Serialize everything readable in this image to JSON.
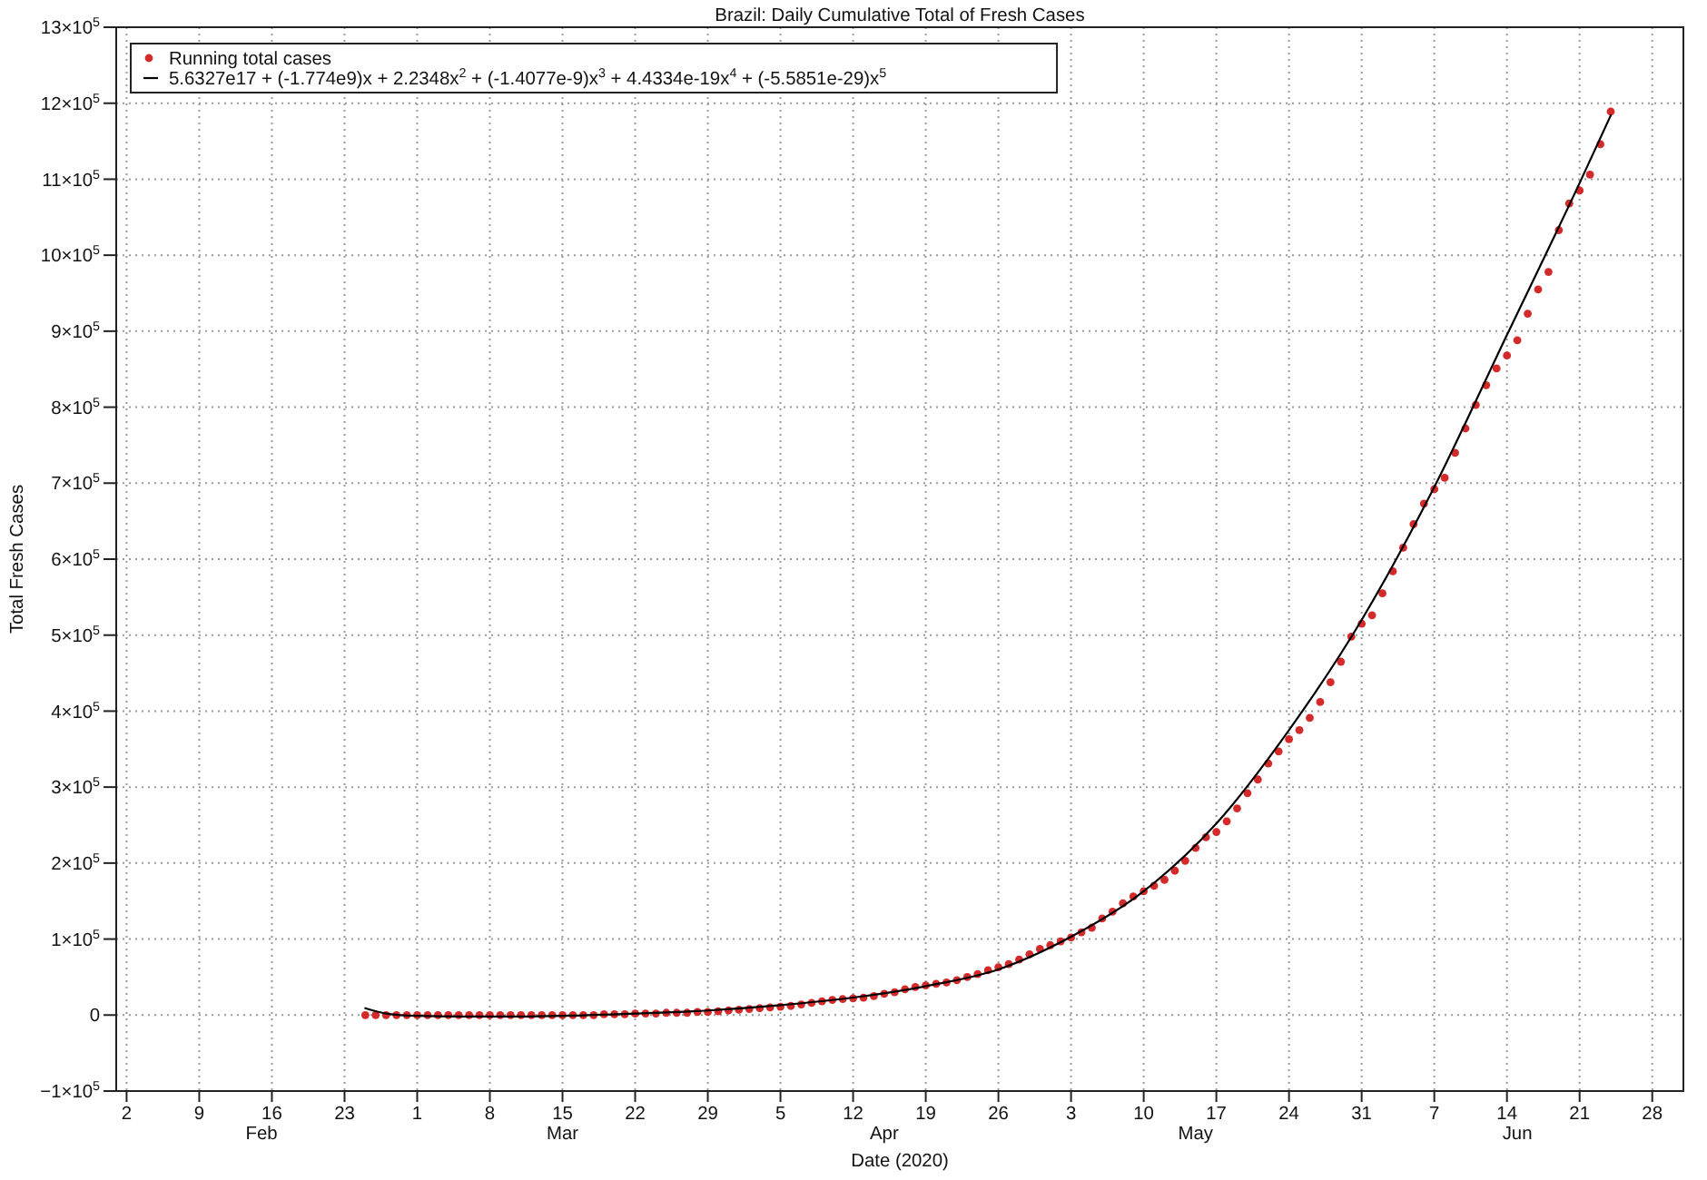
{
  "chart_data": {
    "type": "scatter",
    "title": "Brazil: Daily Cumulative Total of Fresh Cases",
    "xlabel": "Date (2020)",
    "ylabel": "Total Fresh Cases",
    "xlim": [
      "2020-02-01",
      "2020-07-01"
    ],
    "xticks": [
      {
        "value": "2020-02-02",
        "label": "2"
      },
      {
        "value": "2020-02-09",
        "label": "9"
      },
      {
        "value": "2020-02-16",
        "label": "16"
      },
      {
        "value": "2020-02-23",
        "label": "23"
      },
      {
        "value": "2020-03-01",
        "label": "1"
      },
      {
        "value": "2020-03-08",
        "label": "8"
      },
      {
        "value": "2020-03-15",
        "label": "15"
      },
      {
        "value": "2020-03-22",
        "label": "22"
      },
      {
        "value": "2020-03-29",
        "label": "29"
      },
      {
        "value": "2020-04-05",
        "label": "5"
      },
      {
        "value": "2020-04-12",
        "label": "12"
      },
      {
        "value": "2020-04-19",
        "label": "19"
      },
      {
        "value": "2020-04-26",
        "label": "26"
      },
      {
        "value": "2020-05-03",
        "label": "3"
      },
      {
        "value": "2020-05-10",
        "label": "10"
      },
      {
        "value": "2020-05-17",
        "label": "17"
      },
      {
        "value": "2020-05-24",
        "label": "24"
      },
      {
        "value": "2020-05-31",
        "label": "31"
      },
      {
        "value": "2020-06-07",
        "label": "7"
      },
      {
        "value": "2020-06-14",
        "label": "14"
      },
      {
        "value": "2020-06-21",
        "label": "21"
      },
      {
        "value": "2020-06-28",
        "label": "28"
      }
    ],
    "x2lim": [
      "2020-02-01",
      "2020-07-01"
    ],
    "x2ticks": [
      {
        "value": "2020-02-15",
        "label": "Feb"
      },
      {
        "value": "2020-03-15",
        "label": "Mar"
      },
      {
        "value": "2020-04-15",
        "label": "Apr"
      },
      {
        "value": "2020-05-15",
        "label": "May"
      },
      {
        "value": "2020-06-15",
        "label": "Jun"
      }
    ],
    "ylim": [
      -100000,
      1300000
    ],
    "yticks": [
      {
        "value": -100000,
        "label": "−1×10$^{5}$"
      },
      0,
      {
        "value": 100000,
        "label": "1×10$^{5}$"
      },
      {
        "value": 200000,
        "label": "2×10$^{5}$"
      },
      {
        "value": 300000,
        "label": "3×10$^{5}$"
      },
      {
        "value": 400000,
        "label": "4×10$^{5}$"
      },
      {
        "value": 500000,
        "label": "5×10$^{5}$"
      },
      {
        "value": 600000,
        "label": "6×10$^{5}$"
      },
      {
        "value": 700000,
        "label": "7×10$^{5}$"
      },
      {
        "value": 800000,
        "label": "8×10$^{5}$"
      },
      {
        "value": 900000,
        "label": "9×10$^{5}$"
      },
      {
        "value": 1000000,
        "label": "10×10$^{5}$"
      },
      {
        "value": 1100000,
        "label": "11×10$^{5}$"
      },
      {
        "value": 1200000,
        "label": "12×10$^{5}$"
      },
      {
        "value": 1300000,
        "label": "13×10$^{5}$"
      }
    ],
    "grid": true,
    "legend": "top left",
    "x": [
      "2020-02-25",
      "2020-02-26",
      "2020-02-27",
      "2020-02-28",
      "2020-02-29",
      "2020-03-01",
      "2020-03-02",
      "2020-03-03",
      "2020-03-04",
      "2020-03-05",
      "2020-03-06",
      "2020-03-07",
      "2020-03-08",
      "2020-03-09",
      "2020-03-10",
      "2020-03-11",
      "2020-03-12",
      "2020-03-13",
      "2020-03-14",
      "2020-03-15",
      "2020-03-16",
      "2020-03-17",
      "2020-03-18",
      "2020-03-19",
      "2020-03-20",
      "2020-03-21",
      "2020-03-22",
      "2020-03-23",
      "2020-03-24",
      "2020-03-25",
      "2020-03-26",
      "2020-03-27",
      "2020-03-28",
      "2020-03-29",
      "2020-03-30",
      "2020-03-31",
      "2020-04-01",
      "2020-04-02",
      "2020-04-03",
      "2020-04-04",
      "2020-04-05",
      "2020-04-06",
      "2020-04-07",
      "2020-04-08",
      "2020-04-09",
      "2020-04-10",
      "2020-04-11",
      "2020-04-12",
      "2020-04-13",
      "2020-04-14",
      "2020-04-15",
      "2020-04-16",
      "2020-04-17",
      "2020-04-18",
      "2020-04-19",
      "2020-04-20",
      "2020-04-21",
      "2020-04-22",
      "2020-04-23",
      "2020-04-24",
      "2020-04-25",
      "2020-04-26",
      "2020-04-27",
      "2020-04-28",
      "2020-04-29",
      "2020-04-30",
      "2020-05-01",
      "2020-05-02",
      "2020-05-03",
      "2020-05-04",
      "2020-05-05",
      "2020-05-06",
      "2020-05-07",
      "2020-05-08",
      "2020-05-09",
      "2020-05-10",
      "2020-05-11",
      "2020-05-12",
      "2020-05-13",
      "2020-05-14",
      "2020-05-15",
      "2020-05-16",
      "2020-05-17",
      "2020-05-18",
      "2020-05-19",
      "2020-05-20",
      "2020-05-21",
      "2020-05-22",
      "2020-05-23",
      "2020-05-24",
      "2020-05-25",
      "2020-05-26",
      "2020-05-27",
      "2020-05-28",
      "2020-05-29",
      "2020-05-30",
      "2020-05-31",
      "2020-06-01",
      "2020-06-02",
      "2020-06-03",
      "2020-06-04",
      "2020-06-05",
      "2020-06-06",
      "2020-06-07",
      "2020-06-08",
      "2020-06-09",
      "2020-06-10",
      "2020-06-11",
      "2020-06-12",
      "2020-06-13",
      "2020-06-14",
      "2020-06-15",
      "2020-06-16",
      "2020-06-17",
      "2020-06-18",
      "2020-06-19",
      "2020-06-20",
      "2020-06-21",
      "2020-06-22",
      "2020-06-23",
      "2020-06-24"
    ],
    "series": [
      {
        "name": "Running total cases",
        "color": "#d42a2a",
        "marker": "circle",
        "values": [
          0,
          0,
          0,
          0,
          0,
          0,
          0,
          0,
          0,
          0,
          0,
          0,
          0,
          0,
          0,
          0,
          0,
          0,
          0,
          0,
          0,
          0,
          0,
          1000,
          1000,
          1000,
          2000,
          2000,
          2000,
          3000,
          3000,
          3000,
          4000,
          4000,
          5000,
          6000,
          7000,
          8000,
          9000,
          10000,
          11000,
          12000,
          14000,
          16000,
          18000,
          20000,
          21000,
          22000,
          23000,
          25000,
          28000,
          30000,
          34000,
          37000,
          39000,
          41000,
          43000,
          46000,
          50000,
          54000,
          59000,
          63000,
          67000,
          73000,
          80000,
          87000,
          92000,
          97000,
          102000,
          109000,
          115000,
          127000,
          136000,
          147000,
          156000,
          163000,
          170000,
          178000,
          190000,
          203000,
          220000,
          234000,
          241000,
          255000,
          272000,
          292000,
          310000,
          331000,
          347000,
          363000,
          375000,
          391000,
          412000,
          438000,
          465000,
          498000,
          515000,
          526000,
          555000,
          584000,
          615000,
          646000,
          673000,
          692000,
          707000,
          740000,
          772000,
          803000,
          829000,
          851000,
          868000,
          888000,
          923000,
          955000,
          978000,
          1033000,
          1068000,
          1085000,
          1106000,
          1146000,
          1189000
        ]
      },
      {
        "name": "5.6327e17 + (-1.774e9)x + 2.2348x$^{2}$ + (-1.4077e-9)x$^{3}$ + 4.4334e-19x$^{4}$ + (-5.5851e-29)x$^{5}$",
        "type": "line",
        "color": "#000000",
        "x": [
          "2020-02-25",
          "2020-02-27",
          "2020-03-01",
          "2020-03-08",
          "2020-03-15",
          "2020-03-22",
          "2020-03-29",
          "2020-04-05",
          "2020-04-12",
          "2020-04-19",
          "2020-04-26",
          "2020-05-03",
          "2020-05-10",
          "2020-05-17",
          "2020-05-24",
          "2020-05-31",
          "2020-06-07",
          "2020-06-14",
          "2020-06-21",
          "2020-06-24"
        ],
        "values": [
          9000,
          2000,
          -1000,
          -2000,
          -1000,
          2000,
          6000,
          13000,
          23000,
          38000,
          60000,
          103000,
          163000,
          252000,
          375000,
          520000,
          695000,
          895000,
          1095000,
          1184000
        ]
      }
    ]
  }
}
